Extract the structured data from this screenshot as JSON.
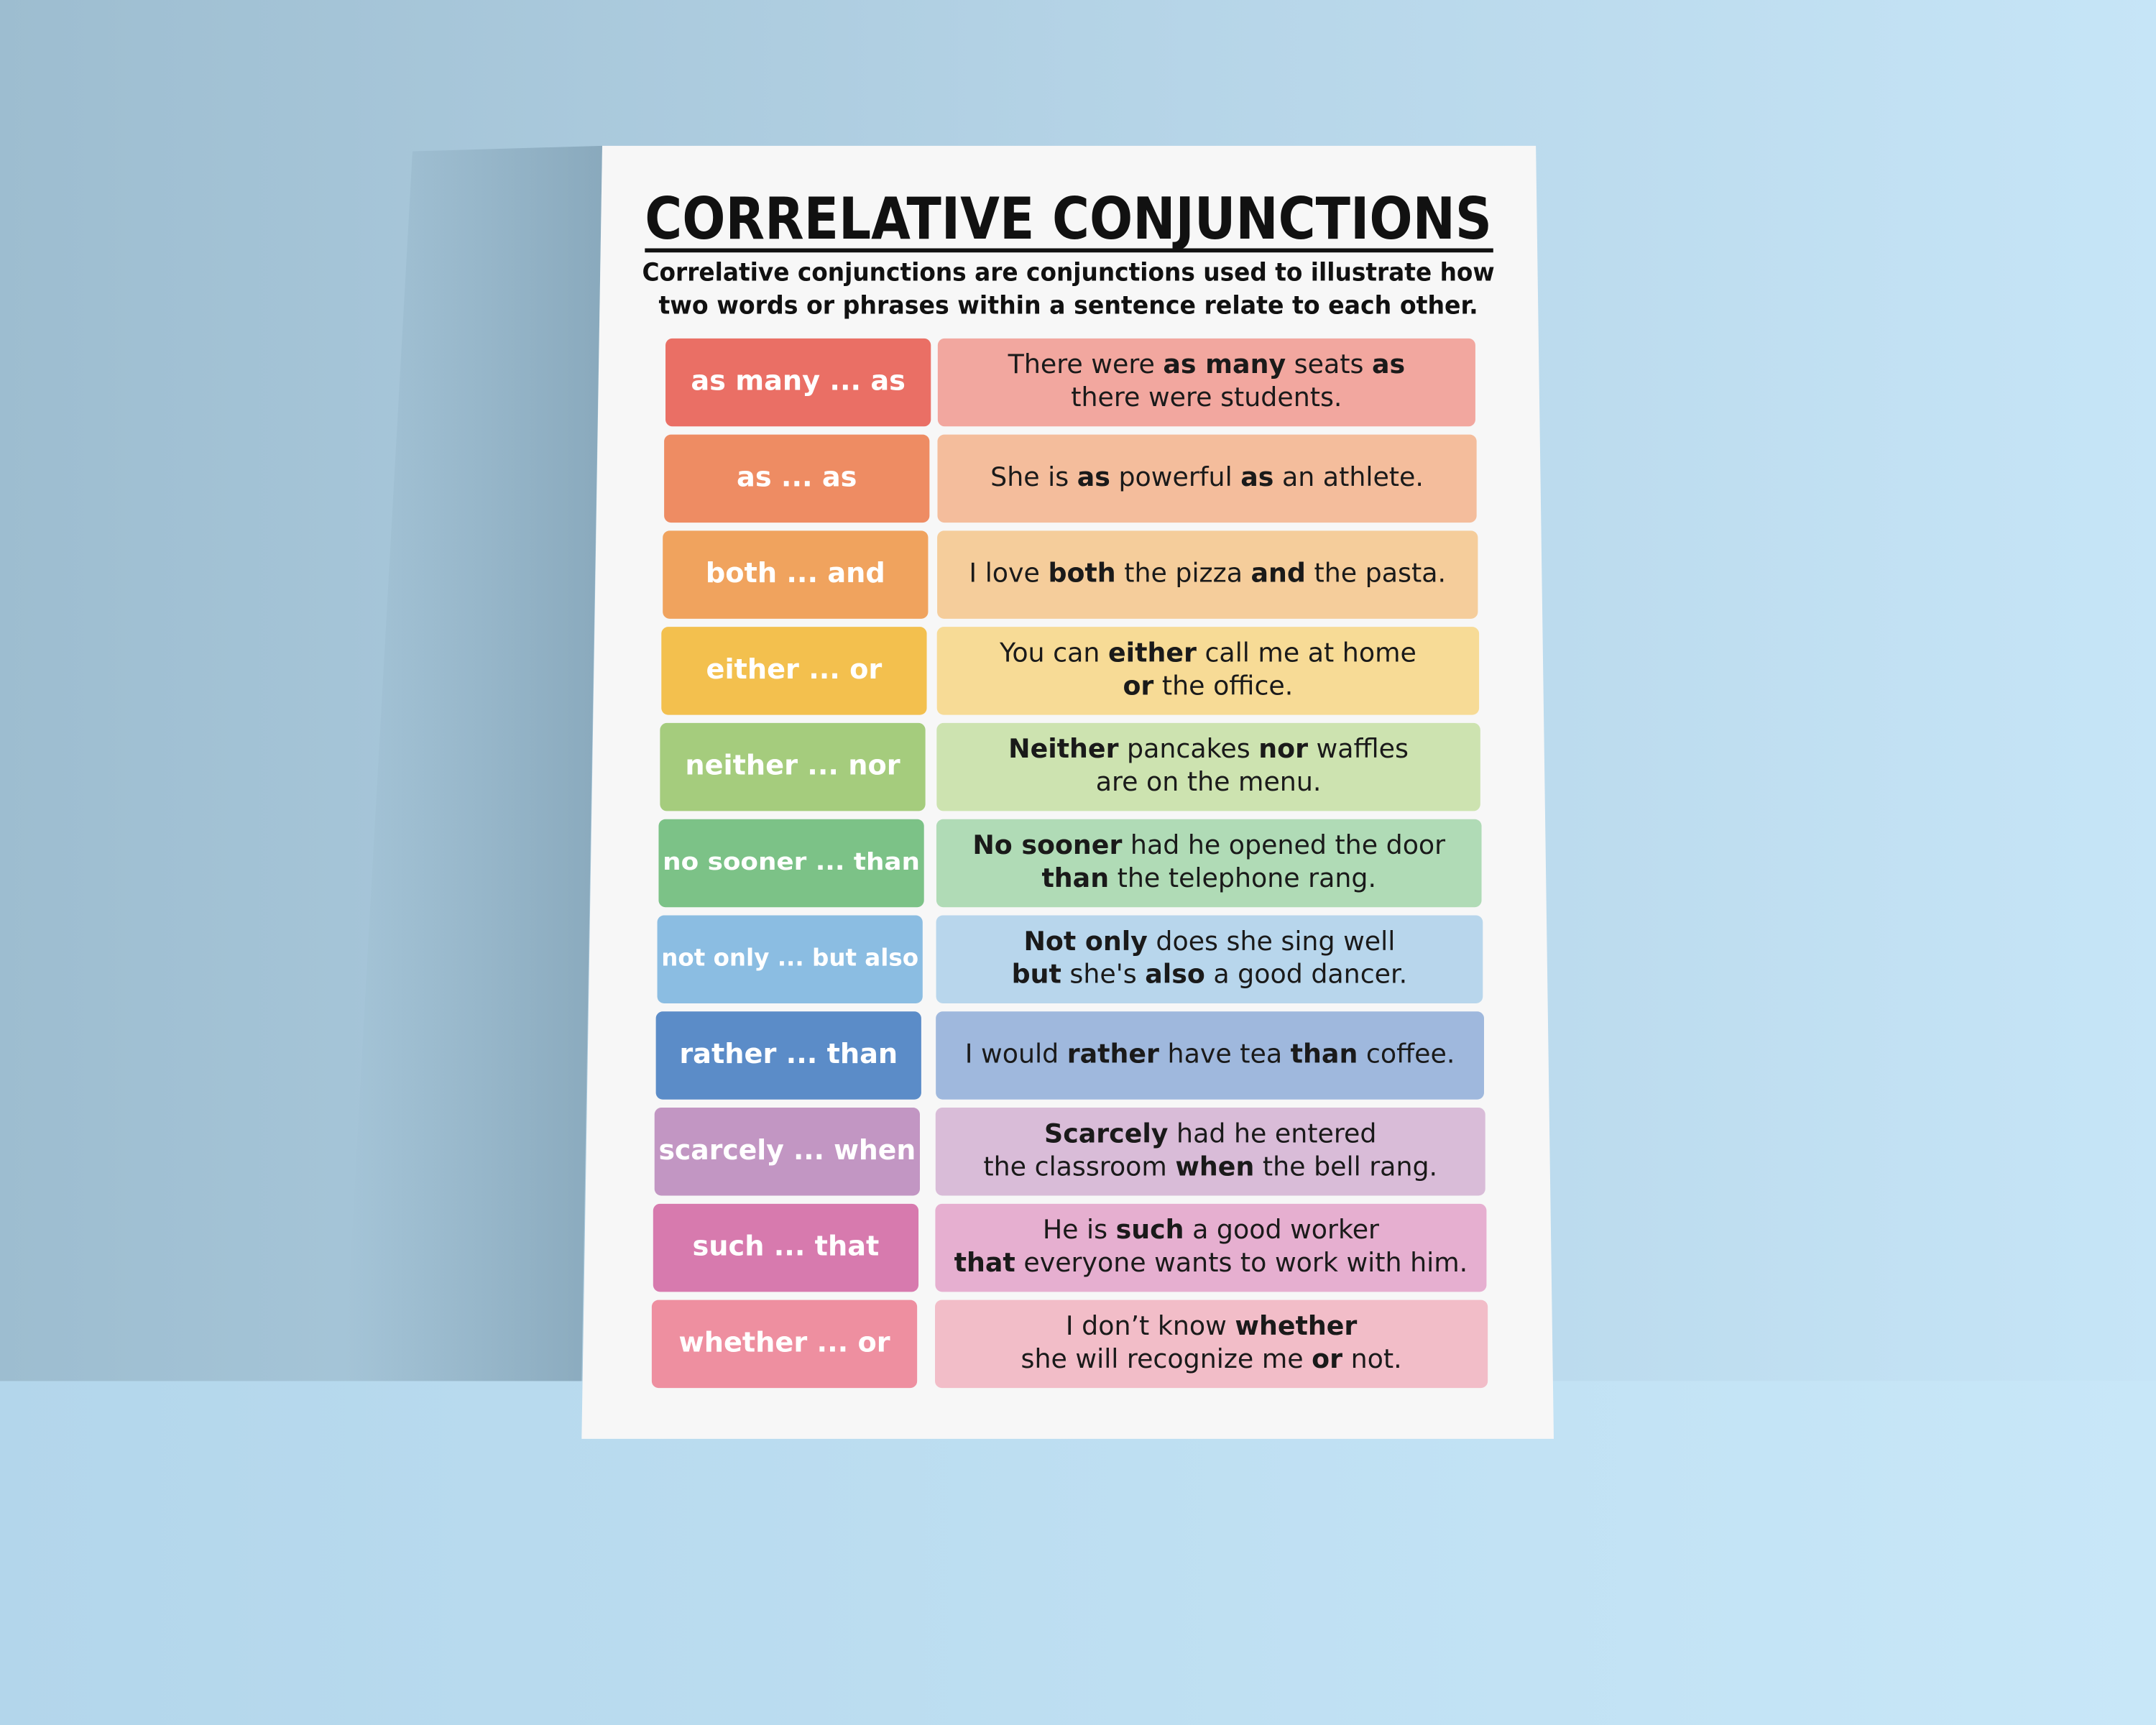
{
  "poster": {
    "title": "CORRELATIVE CONJUNCTIONS",
    "subtitle": [
      "Correlative conjunctions are conjunctions used to illustrate how",
      "two words or phrases within a sentence relate to each other."
    ],
    "rows": [
      {
        "term": "as many ... as",
        "color": "#ea6f65",
        "light": "#f2a79f",
        "example": [
          [
            {
              "t": "There were ",
              "b": false
            },
            {
              "t": "as many",
              "b": true
            },
            {
              "t": " seats ",
              "b": false
            },
            {
              "t": "as",
              "b": true
            }
          ],
          [
            {
              "t": "there were students.",
              "b": false
            }
          ]
        ]
      },
      {
        "term": "as ... as",
        "color": "#ee8c63",
        "light": "#f4bd9c",
        "example": [
          [
            {
              "t": "She is ",
              "b": false
            },
            {
              "t": "as",
              "b": true
            },
            {
              "t": " powerful ",
              "b": false
            },
            {
              "t": "as",
              "b": true
            },
            {
              "t": " an athlete.",
              "b": false
            }
          ]
        ]
      },
      {
        "term": "both ... and",
        "color": "#f0a35e",
        "light": "#f5cd9b",
        "example": [
          [
            {
              "t": "I love ",
              "b": false
            },
            {
              "t": "both",
              "b": true
            },
            {
              "t": " the pizza ",
              "b": false
            },
            {
              "t": "and",
              "b": true
            },
            {
              "t": " the pasta.",
              "b": false
            }
          ]
        ]
      },
      {
        "term": "either ... or",
        "color": "#f3c04e",
        "light": "#f7db96",
        "example": [
          [
            {
              "t": "You can ",
              "b": false
            },
            {
              "t": "either",
              "b": true
            },
            {
              "t": " call me at home",
              "b": false
            }
          ],
          [
            {
              "t": "or",
              "b": true
            },
            {
              "t": " the office.",
              "b": false
            }
          ]
        ]
      },
      {
        "term": "neither ... nor",
        "color": "#a5cc7d",
        "light": "#cde3b0",
        "example": [
          [
            {
              "t": "Neither",
              "b": true
            },
            {
              "t": " pancakes ",
              "b": false
            },
            {
              "t": "nor",
              "b": true
            },
            {
              "t": " waffles",
              "b": false
            }
          ],
          [
            {
              "t": "are on the menu.",
              "b": false
            }
          ]
        ]
      },
      {
        "term": "no sooner ... than",
        "color": "#7cc287",
        "light": "#b0dbb6",
        "example": [
          [
            {
              "t": "No sooner",
              "b": true
            },
            {
              "t": " had he opened the door",
              "b": false
            }
          ],
          [
            {
              "t": "than",
              "b": true
            },
            {
              "t": " the telephone rang.",
              "b": false
            }
          ]
        ]
      },
      {
        "term": "not only ... but also",
        "color": "#8bbde2",
        "light": "#b8d6ec",
        "example": [
          [
            {
              "t": "Not only",
              "b": true
            },
            {
              "t": " does she sing well",
              "b": false
            }
          ],
          [
            {
              "t": "but",
              "b": true
            },
            {
              "t": " she's ",
              "b": false
            },
            {
              "t": "also",
              "b": true
            },
            {
              "t": " a good dancer.",
              "b": false
            }
          ]
        ]
      },
      {
        "term": "rather ... than",
        "color": "#5b8cc8",
        "light": "#9fb8dd",
        "example": [
          [
            {
              "t": "I would ",
              "b": false
            },
            {
              "t": "rather",
              "b": true
            },
            {
              "t": " have tea ",
              "b": false
            },
            {
              "t": "than",
              "b": true
            },
            {
              "t": " coffee.",
              "b": false
            }
          ]
        ]
      },
      {
        "term": "scarcely ... when",
        "color": "#c296c3",
        "light": "#d9bcd8",
        "example": [
          [
            {
              "t": "Scarcely",
              "b": true
            },
            {
              "t": " had he entered",
              "b": false
            }
          ],
          [
            {
              "t": "the classroom ",
              "b": false
            },
            {
              "t": "when",
              "b": true
            },
            {
              "t": " the bell rang.",
              "b": false
            }
          ]
        ]
      },
      {
        "term": "such ... that",
        "color": "#d77aae",
        "light": "#e6afd0",
        "example": [
          [
            {
              "t": "He is ",
              "b": false
            },
            {
              "t": "such",
              "b": true
            },
            {
              "t": " a good worker",
              "b": false
            }
          ],
          [
            {
              "t": "that",
              "b": true
            },
            {
              "t": " everyone wants to work with him.",
              "b": false
            }
          ]
        ]
      },
      {
        "term": "whether ... or",
        "color": "#ee8fa0",
        "light": "#f2bdc8",
        "example": [
          [
            {
              "t": "I don’t know ",
              "b": false
            },
            {
              "t": "whether",
              "b": true
            }
          ],
          [
            {
              "t": "she will recognize me ",
              "b": false
            },
            {
              "t": "or",
              "b": true
            },
            {
              "t": " not.",
              "b": false
            }
          ]
        ]
      }
    ]
  }
}
